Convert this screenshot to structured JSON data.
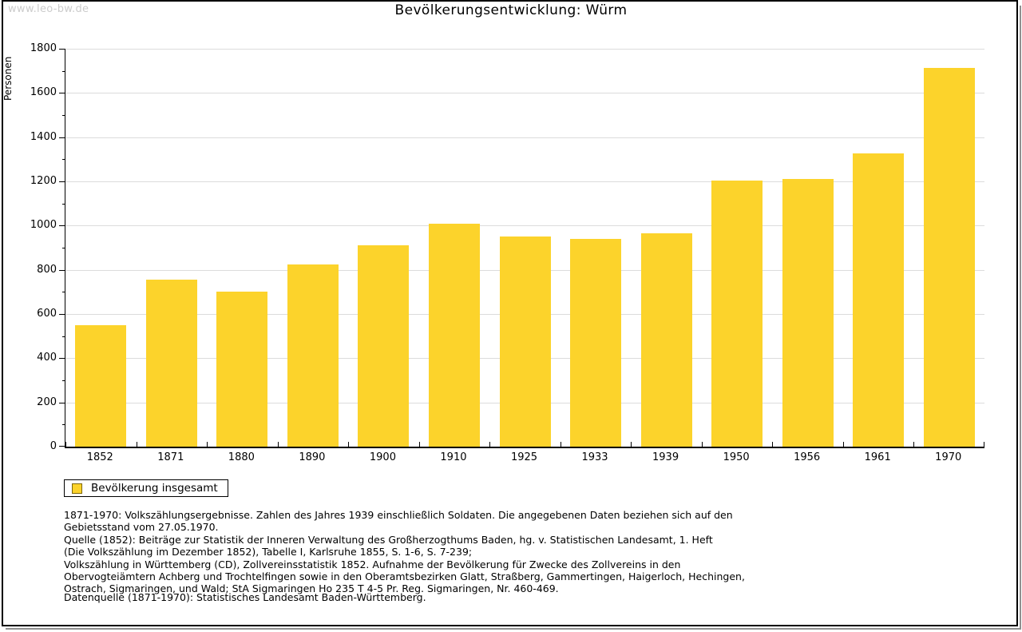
{
  "watermark": "www.leo-bw.de",
  "title": "Bevölkerungsentwicklung: Würm",
  "legend": {
    "label": "Bevölkerung insgesamt"
  },
  "colors": {
    "bar": "#fcd32b",
    "grid": "#dcdcdc",
    "axis": "#000000",
    "watermark": "#cccccc",
    "legend_swatch_border": "#7d6608",
    "frame_shadow": "#909090"
  },
  "chart_data": {
    "type": "bar",
    "title": "Bevölkerungsentwicklung: Würm",
    "series_name": "Bevölkerung insgesamt",
    "categories": [
      "1852",
      "1871",
      "1880",
      "1890",
      "1900",
      "1910",
      "1925",
      "1933",
      "1939",
      "1950",
      "1956",
      "1961",
      "1970"
    ],
    "values": [
      550,
      755,
      700,
      825,
      910,
      1010,
      950,
      940,
      965,
      1205,
      1210,
      1325,
      1715
    ],
    "xlabel": "",
    "ylabel": "Personen",
    "ylim": [
      0,
      1800
    ],
    "y_major_step": 200,
    "y_minor_step": 100,
    "grid": "horizontal-major",
    "legend_position": "bottom-left"
  },
  "footnotes": {
    "lines": [
      "1871-1970: Volkszählungsergebnisse. Zahlen des Jahres 1939 einschließlich Soldaten. Die angegebenen Daten beziehen sich auf den",
      "Gebietsstand vom 27.05.1970.",
      "Quelle (1852): Beiträge zur Statistik der Inneren Verwaltung des Großherzogthums Baden, hg. v. Statistischen Landesamt, 1. Heft",
      "(Die Volkszählung im Dezember 1852), Tabelle I, Karlsruhe 1855, S. 1-6, S. 7-239;",
      "Volkszählung in Württemberg (CD), Zollvereinsstatistik 1852. Aufnahme der Bevölkerung für Zwecke des Zollvereins in den",
      "Obervogteiämtern Achberg und Trochtelfingen sowie in den Oberamtsbezirken Glatt, Straßberg, Gammertingen, Haigerloch, Hechingen,",
      "Ostrach, Sigmaringen, und Wald; StA Sigmaringen Ho 235 T 4-5 Pr. Reg. Sigmaringen, Nr. 460-469."
    ],
    "source_line": "Datenquelle (1871-1970): Statistisches Landesamt Baden-Württemberg."
  }
}
